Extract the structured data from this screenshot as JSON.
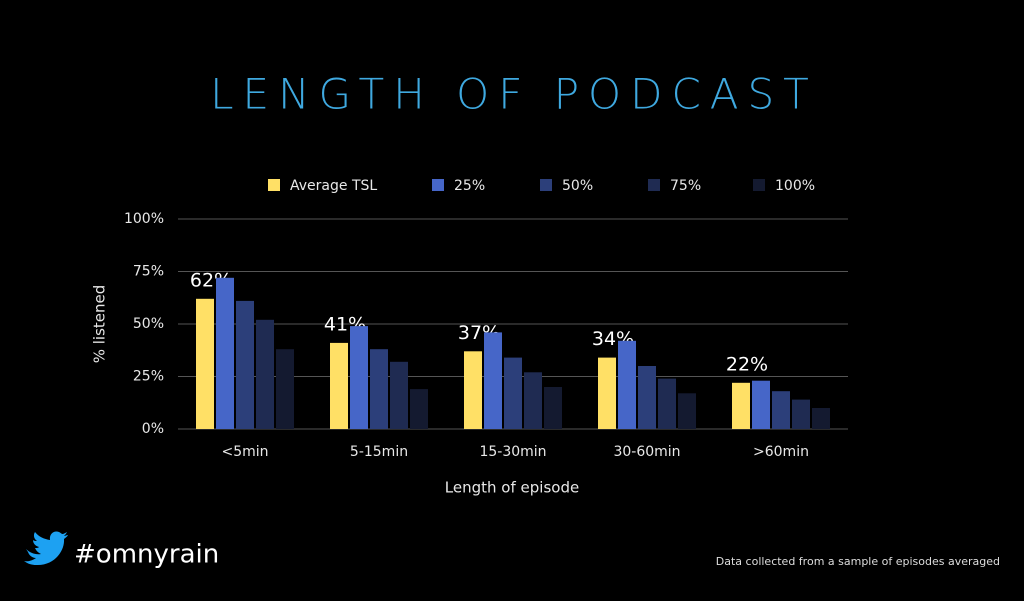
{
  "chart_data": {
    "type": "bar",
    "title": "LENGTH OF PODCAST",
    "x_label": "Length of episode",
    "y_label": "% listened",
    "categories": [
      "<5min",
      "5-15min",
      "15-30min",
      "30-60min",
      ">60min"
    ],
    "series": [
      {
        "name": "Average TSL",
        "color": "#ffe066",
        "values": [
          62,
          41,
          37,
          34,
          22
        ],
        "value_labels": [
          "62%",
          "41%",
          "37%",
          "34%",
          "22%"
        ]
      },
      {
        "name": "25%",
        "color": "#4666c8",
        "values": [
          72,
          49,
          46,
          42,
          23
        ]
      },
      {
        "name": "50%",
        "color": "#2c3f7a",
        "values": [
          61,
          38,
          34,
          30,
          18
        ]
      },
      {
        "name": "75%",
        "color": "#1f2b52",
        "values": [
          52,
          32,
          27,
          24,
          14
        ]
      },
      {
        "name": "100%",
        "color": "#141a30",
        "values": [
          38,
          19,
          20,
          17,
          10
        ]
      }
    ],
    "ylim": [
      0,
      100
    ],
    "yticks": [
      {
        "value": 0,
        "label": "0%"
      },
      {
        "value": 25,
        "label": "25%"
      },
      {
        "value": 50,
        "label": "50%"
      },
      {
        "value": 75,
        "label": "75%"
      },
      {
        "value": 100,
        "label": "100%"
      }
    ],
    "grid": true,
    "legend": "top"
  },
  "footer": {
    "hashtag": "#omnyrain",
    "note": "Data collected from a sample of episodes averaged"
  }
}
